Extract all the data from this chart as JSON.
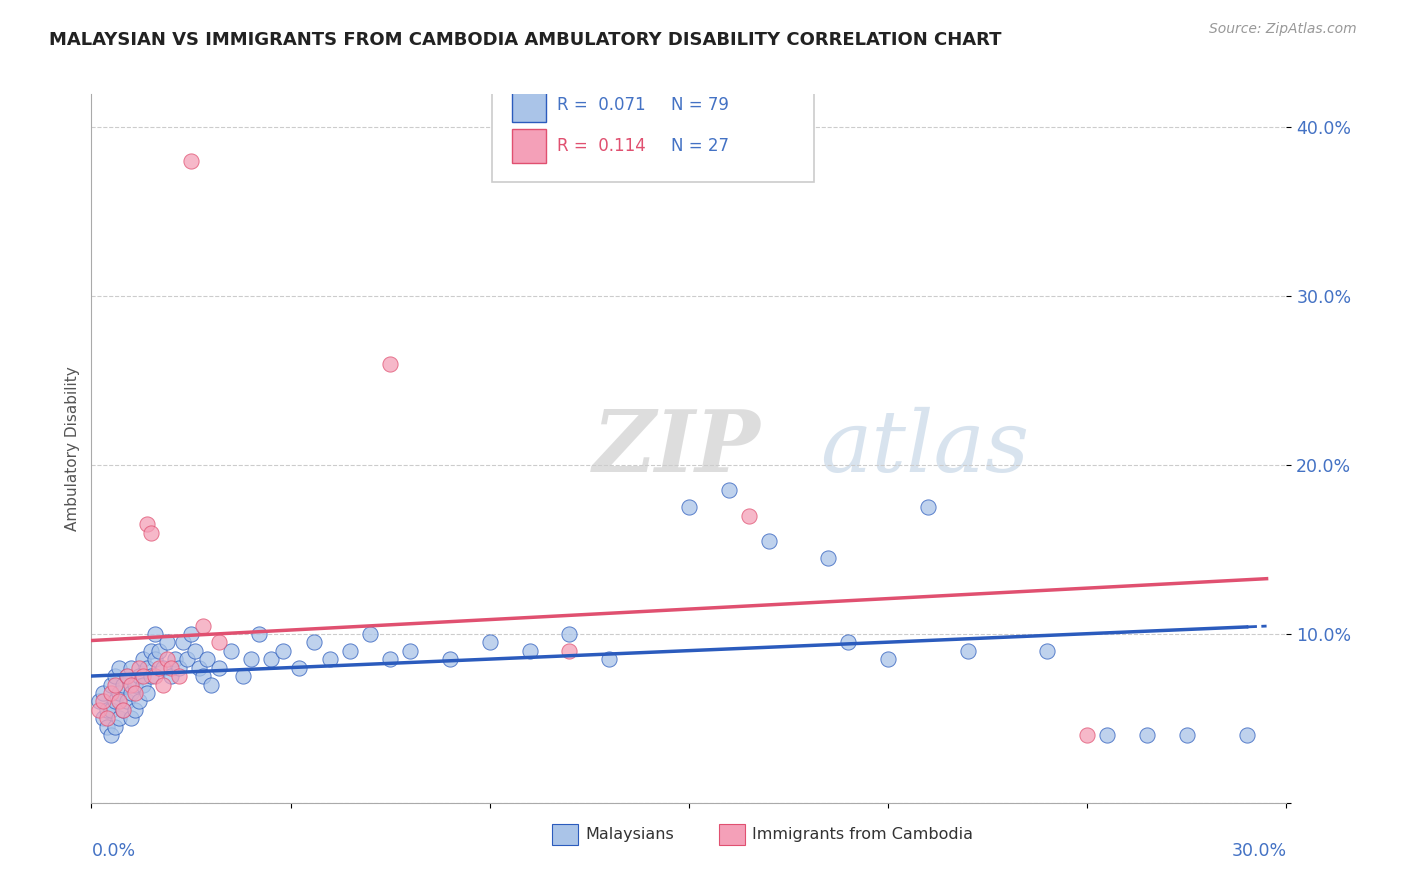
{
  "title": "MALAYSIAN VS IMMIGRANTS FROM CAMBODIA AMBULATORY DISABILITY CORRELATION CHART",
  "source": "Source: ZipAtlas.com",
  "ylabel": "Ambulatory Disability",
  "legend_r1": "R =  0.071",
  "legend_n1": "N = 79",
  "legend_r2": "R =  0.114",
  "legend_n2": "N = 27",
  "malaysian_color": "#aac4e8",
  "cambodia_color": "#f4a0b8",
  "trend_malaysian_color": "#2b5bbd",
  "trend_cambodia_color": "#e05070",
  "background_color": "#ffffff",
  "watermark_zip": "ZIP",
  "watermark_atlas": "atlas",
  "xlim": [
    0.0,
    0.3
  ],
  "ylim": [
    0.0,
    0.42
  ],
  "malaysians_x": [
    0.002,
    0.003,
    0.003,
    0.004,
    0.004,
    0.005,
    0.005,
    0.005,
    0.006,
    0.006,
    0.006,
    0.007,
    0.007,
    0.007,
    0.008,
    0.008,
    0.009,
    0.009,
    0.01,
    0.01,
    0.01,
    0.011,
    0.011,
    0.012,
    0.012,
    0.013,
    0.013,
    0.014,
    0.014,
    0.015,
    0.015,
    0.016,
    0.016,
    0.017,
    0.018,
    0.019,
    0.02,
    0.021,
    0.022,
    0.023,
    0.024,
    0.025,
    0.026,
    0.027,
    0.028,
    0.029,
    0.03,
    0.032,
    0.035,
    0.038,
    0.04,
    0.042,
    0.045,
    0.048,
    0.052,
    0.056,
    0.06,
    0.065,
    0.07,
    0.075,
    0.08,
    0.09,
    0.1,
    0.11,
    0.12,
    0.13,
    0.15,
    0.16,
    0.17,
    0.185,
    0.19,
    0.2,
    0.21,
    0.22,
    0.24,
    0.255,
    0.265,
    0.275,
    0.29
  ],
  "malaysians_y": [
    0.06,
    0.05,
    0.065,
    0.045,
    0.055,
    0.04,
    0.055,
    0.07,
    0.045,
    0.06,
    0.075,
    0.05,
    0.065,
    0.08,
    0.055,
    0.07,
    0.06,
    0.075,
    0.05,
    0.065,
    0.08,
    0.055,
    0.07,
    0.06,
    0.075,
    0.07,
    0.085,
    0.065,
    0.08,
    0.075,
    0.09,
    0.085,
    0.1,
    0.09,
    0.08,
    0.095,
    0.075,
    0.085,
    0.08,
    0.095,
    0.085,
    0.1,
    0.09,
    0.08,
    0.075,
    0.085,
    0.07,
    0.08,
    0.09,
    0.075,
    0.085,
    0.1,
    0.085,
    0.09,
    0.08,
    0.095,
    0.085,
    0.09,
    0.1,
    0.085,
    0.09,
    0.085,
    0.095,
    0.09,
    0.1,
    0.085,
    0.175,
    0.185,
    0.155,
    0.145,
    0.095,
    0.085,
    0.175,
    0.09,
    0.09,
    0.04,
    0.04,
    0.04,
    0.04
  ],
  "cambodia_x": [
    0.002,
    0.003,
    0.004,
    0.005,
    0.006,
    0.007,
    0.008,
    0.009,
    0.01,
    0.011,
    0.012,
    0.013,
    0.014,
    0.015,
    0.016,
    0.017,
    0.018,
    0.019,
    0.02,
    0.022,
    0.025,
    0.028,
    0.032,
    0.075,
    0.12,
    0.165,
    0.25
  ],
  "cambodia_y": [
    0.055,
    0.06,
    0.05,
    0.065,
    0.07,
    0.06,
    0.055,
    0.075,
    0.07,
    0.065,
    0.08,
    0.075,
    0.165,
    0.16,
    0.075,
    0.08,
    0.07,
    0.085,
    0.08,
    0.075,
    0.38,
    0.105,
    0.095,
    0.26,
    0.09,
    0.17,
    0.04
  ]
}
